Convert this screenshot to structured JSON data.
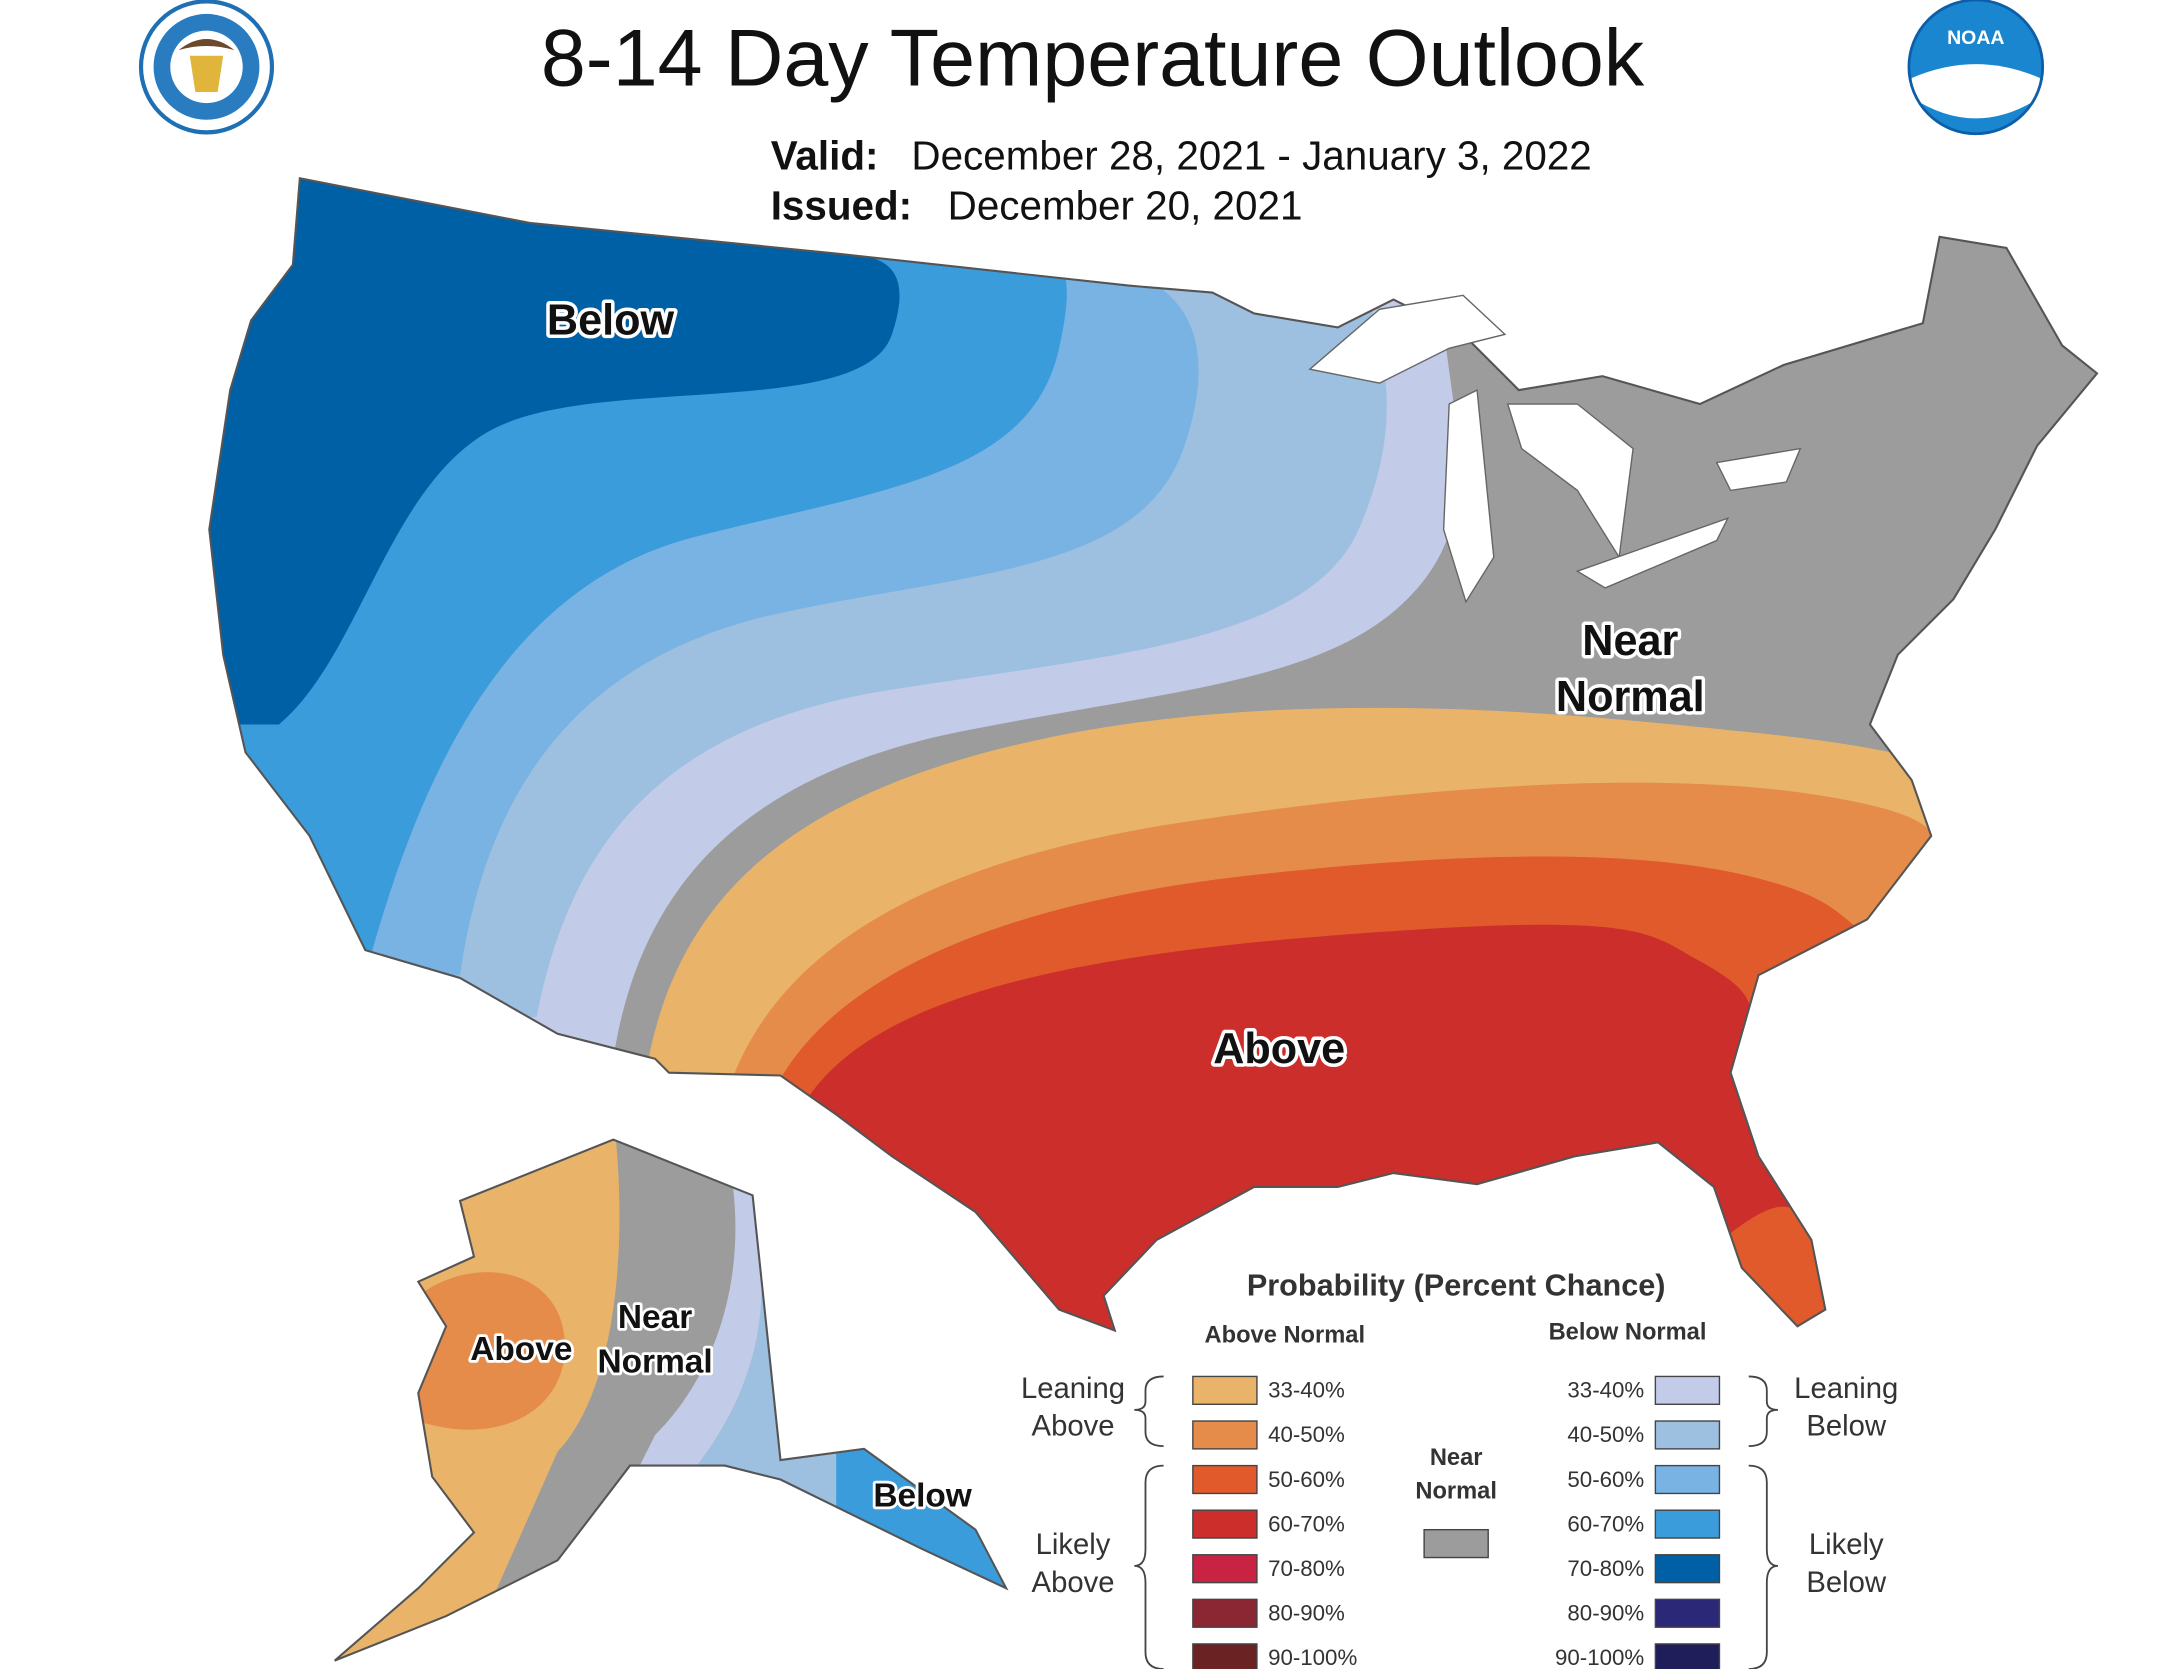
{
  "header": {
    "title": "8-14 Day Temperature Outlook",
    "valid_label": "Valid:",
    "valid": "December 28, 2021 - January 3, 2022",
    "issued_label": "Issued:",
    "issued": "December 20, 2021"
  },
  "logos": {
    "noaa": "NOAA"
  },
  "map": {
    "conus": {
      "below": "Below",
      "near_normal": [
        "Near",
        "Normal"
      ],
      "above": "Above"
    },
    "alaska": {
      "above": "Above",
      "near_normal": [
        "Near",
        "Normal"
      ],
      "below": "Below"
    }
  },
  "legend": {
    "title": "Probability (Percent Chance)",
    "above_header": "Above Normal",
    "below_header": "Below Normal",
    "leaning_above": [
      "Leaning",
      "Above"
    ],
    "likely_above": [
      "Likely",
      "Above"
    ],
    "leaning_below": [
      "Leaning",
      "Below"
    ],
    "likely_below": [
      "Likely",
      "Below"
    ],
    "near_normal": [
      "Near",
      "Normal"
    ],
    "near_normal_color": "#9c9c9c",
    "above": [
      {
        "label": "33-40%",
        "color": "#e9b46a"
      },
      {
        "label": "40-50%",
        "color": "#e68c4a"
      },
      {
        "label": "50-60%",
        "color": "#e05a2c"
      },
      {
        "label": "60-70%",
        "color": "#cb2e2b"
      },
      {
        "label": "70-80%",
        "color": "#c92344"
      },
      {
        "label": "80-90%",
        "color": "#8b2733"
      },
      {
        "label": "90-100%",
        "color": "#6b2223"
      }
    ],
    "below": [
      {
        "label": "33-40%",
        "color": "#c2cbe7"
      },
      {
        "label": "40-50%",
        "color": "#9dbfe0"
      },
      {
        "label": "50-60%",
        "color": "#78b3e3"
      },
      {
        "label": "60-70%",
        "color": "#3b9cdc"
      },
      {
        "label": "70-80%",
        "color": "#0060a5"
      },
      {
        "label": "80-90%",
        "color": "#2b2878"
      },
      {
        "label": "90-100%",
        "color": "#201d5b"
      }
    ]
  }
}
